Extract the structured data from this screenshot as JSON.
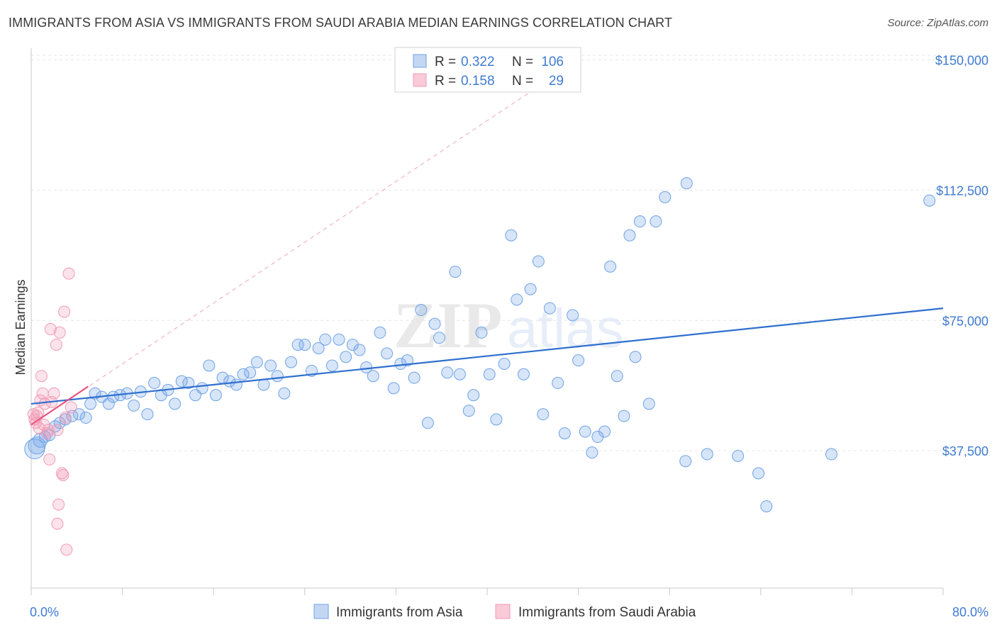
{
  "title": "IMMIGRANTS FROM ASIA VS IMMIGRANTS FROM SAUDI ARABIA MEDIAN EARNINGS CORRELATION CHART",
  "source": "Source: ZipAtlas.com",
  "watermark": {
    "zip": "ZIP",
    "atlas": "atlas"
  },
  "colors": {
    "asia": "#6fa3e6",
    "asia_line": "#2f6fcf",
    "saudi": "#f29bb6",
    "saudi_line": "#e8537f",
    "axis_text": "#3f7bd0",
    "grid": "#e6e6e6"
  },
  "legend": {
    "rows": [
      {
        "r_label": "R =",
        "r_value": "0.322",
        "n_label": "N =",
        "n_value": "106"
      },
      {
        "r_label": "R =",
        "r_value": "0.158",
        "n_label": "N =",
        "n_value": "29"
      }
    ]
  },
  "bottom_legend": [
    "Immigrants from Asia",
    "Immigrants from Saudi Arabia"
  ],
  "chart_data": {
    "type": "scatter",
    "title": "IMMIGRANTS FROM ASIA VS IMMIGRANTS FROM SAUDI ARABIA MEDIAN EARNINGS CORRELATION CHART",
    "xlabel": "",
    "ylabel": "Median Earnings",
    "xlim": [
      0,
      80
    ],
    "ylim": [
      0,
      155000
    ],
    "x_tick_labels": [
      "0.0%",
      "80.0%"
    ],
    "y_ticks": [
      37500,
      75000,
      112500,
      150000
    ],
    "y_tick_labels": [
      "$37,500",
      "$75,000",
      "$112,500",
      "$150,000"
    ],
    "series": [
      {
        "name": "Immigrants from Asia",
        "r": 0.322,
        "n": 106,
        "trend": {
          "x": [
            0,
            80
          ],
          "y": [
            51000,
            78500
          ]
        },
        "points": [
          [
            0.3,
            38000
          ],
          [
            0.5,
            39000
          ],
          [
            0.8,
            40500
          ],
          [
            1.2,
            41500
          ],
          [
            1.6,
            42000
          ],
          [
            2.1,
            44500
          ],
          [
            2.5,
            45500
          ],
          [
            3.0,
            46500
          ],
          [
            3.6,
            47500
          ],
          [
            4.2,
            48000
          ],
          [
            4.8,
            47000
          ],
          [
            5.2,
            51000
          ],
          [
            5.6,
            54000
          ],
          [
            6.2,
            53000
          ],
          [
            6.8,
            51000
          ],
          [
            7.2,
            53000
          ],
          [
            7.8,
            53500
          ],
          [
            8.4,
            54000
          ],
          [
            9.0,
            50500
          ],
          [
            9.6,
            54500
          ],
          [
            10.2,
            48000
          ],
          [
            10.8,
            57000
          ],
          [
            11.4,
            53500
          ],
          [
            12.0,
            55000
          ],
          [
            12.6,
            51000
          ],
          [
            13.2,
            57500
          ],
          [
            13.8,
            57000
          ],
          [
            14.4,
            53500
          ],
          [
            15.0,
            55500
          ],
          [
            15.6,
            62000
          ],
          [
            16.2,
            53500
          ],
          [
            16.8,
            58500
          ],
          [
            17.4,
            57500
          ],
          [
            18.0,
            56500
          ],
          [
            18.6,
            59500
          ],
          [
            19.2,
            60000
          ],
          [
            19.8,
            63000
          ],
          [
            20.4,
            56500
          ],
          [
            21.0,
            62000
          ],
          [
            21.6,
            59000
          ],
          [
            22.2,
            54000
          ],
          [
            22.8,
            63000
          ],
          [
            23.4,
            68000
          ],
          [
            24.0,
            68000
          ],
          [
            24.6,
            60500
          ],
          [
            25.2,
            67000
          ],
          [
            25.8,
            69500
          ],
          [
            26.4,
            62000
          ],
          [
            27.0,
            69500
          ],
          [
            27.6,
            64500
          ],
          [
            28.2,
            68000
          ],
          [
            28.8,
            66500
          ],
          [
            29.4,
            61500
          ],
          [
            30.0,
            59000
          ],
          [
            30.6,
            71500
          ],
          [
            31.2,
            65500
          ],
          [
            31.8,
            55500
          ],
          [
            32.4,
            62500
          ],
          [
            33.0,
            63500
          ],
          [
            33.6,
            58500
          ],
          [
            34.2,
            78000
          ],
          [
            34.8,
            45500
          ],
          [
            35.4,
            74000
          ],
          [
            35.8,
            70000
          ],
          [
            36.5,
            60000
          ],
          [
            37.2,
            89000
          ],
          [
            37.6,
            59500
          ],
          [
            38.4,
            49000
          ],
          [
            38.8,
            53500
          ],
          [
            39.5,
            71500
          ],
          [
            40.2,
            59500
          ],
          [
            40.8,
            46500
          ],
          [
            41.5,
            62500
          ],
          [
            42.1,
            99500
          ],
          [
            42.6,
            81000
          ],
          [
            43.2,
            59500
          ],
          [
            43.8,
            84000
          ],
          [
            44.5,
            92000
          ],
          [
            44.9,
            48000
          ],
          [
            45.5,
            78500
          ],
          [
            46.2,
            57000
          ],
          [
            46.8,
            42500
          ],
          [
            47.5,
            76500
          ],
          [
            48.0,
            63500
          ],
          [
            48.6,
            43000
          ],
          [
            49.2,
            37000
          ],
          [
            49.7,
            41500
          ],
          [
            50.3,
            43000
          ],
          [
            50.8,
            90500
          ],
          [
            51.4,
            59000
          ],
          [
            52.0,
            47500
          ],
          [
            52.5,
            99500
          ],
          [
            53.0,
            64500
          ],
          [
            53.4,
            103500
          ],
          [
            54.2,
            51000
          ],
          [
            54.8,
            103500
          ],
          [
            55.6,
            110500
          ],
          [
            57.5,
            114500
          ],
          [
            57.4,
            34500
          ],
          [
            59.3,
            36500
          ],
          [
            62.0,
            36000
          ],
          [
            63.8,
            31000
          ],
          [
            64.5,
            21500
          ],
          [
            70.2,
            36500
          ],
          [
            78.8,
            109500
          ]
        ]
      },
      {
        "name": "Immigrants from Saudi Arabia",
        "r": 0.158,
        "n": 29,
        "trend": {
          "x": [
            0,
            5
          ],
          "y": [
            45000,
            56000
          ]
        },
        "dashed_trend": {
          "x": [
            0,
            48
          ],
          "y": [
            45000,
            150000
          ]
        },
        "points": [
          [
            0.2,
            48000
          ],
          [
            0.3,
            46500
          ],
          [
            0.4,
            45500
          ],
          [
            0.5,
            47500
          ],
          [
            0.6,
            48500
          ],
          [
            0.7,
            44000
          ],
          [
            0.8,
            52000
          ],
          [
            0.9,
            59000
          ],
          [
            1.0,
            54000
          ],
          [
            1.1,
            45000
          ],
          [
            1.2,
            51000
          ],
          [
            1.4,
            42500
          ],
          [
            1.5,
            43500
          ],
          [
            1.6,
            35000
          ],
          [
            1.7,
            72500
          ],
          [
            1.8,
            51500
          ],
          [
            2.0,
            54000
          ],
          [
            2.2,
            68000
          ],
          [
            2.3,
            43500
          ],
          [
            2.5,
            71500
          ],
          [
            2.7,
            31000
          ],
          [
            2.8,
            30500
          ],
          [
            2.9,
            77500
          ],
          [
            3.0,
            47000
          ],
          [
            2.4,
            22000
          ],
          [
            2.3,
            16500
          ],
          [
            3.1,
            9000
          ],
          [
            3.3,
            88500
          ],
          [
            3.5,
            50000
          ]
        ]
      }
    ]
  }
}
